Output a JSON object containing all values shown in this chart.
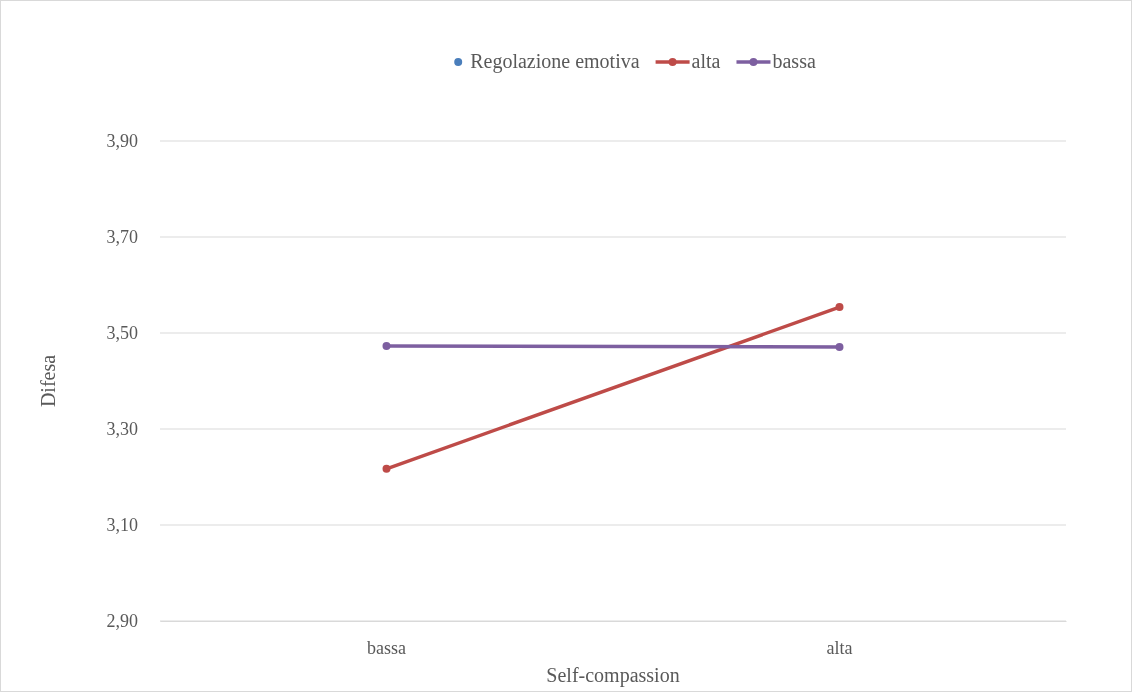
{
  "chart_data": {
    "type": "line",
    "xlabel": "Self-compassion",
    "ylabel": "Difesa",
    "categories": [
      "bassa",
      "alta"
    ],
    "series": [
      {
        "name": "Regolazione emotiva",
        "type": "scatter",
        "color": "#4a7ebb",
        "values": [
          null,
          null
        ]
      },
      {
        "name": "alta",
        "color": "#be4b48",
        "values": [
          3.217,
          3.554
        ]
      },
      {
        "name": "bassa",
        "color": "#7d5fa0",
        "values": [
          3.473,
          3.471
        ]
      }
    ],
    "ylim": [
      2.9,
      3.9
    ],
    "yticks": [
      {
        "value": 2.9,
        "label": "2,90"
      },
      {
        "value": 3.1,
        "label": "3,10"
      },
      {
        "value": 3.3,
        "label": "3,30"
      },
      {
        "value": 3.5,
        "label": "3,50"
      },
      {
        "value": 3.7,
        "label": "3,70"
      },
      {
        "value": 3.9,
        "label": "3,90"
      }
    ],
    "grid": "y",
    "legend": "top",
    "marker": "circle",
    "line_style": "solid"
  }
}
